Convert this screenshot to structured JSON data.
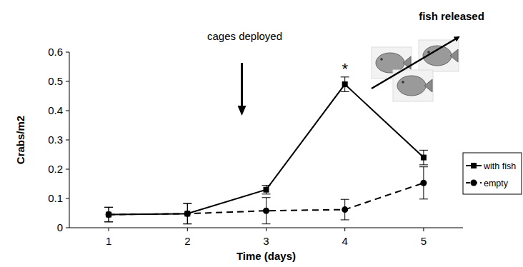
{
  "chart_data": {
    "type": "line",
    "x_label": "Time (days)",
    "y_label": "Crabs/m2",
    "x": [
      1,
      2,
      3,
      4,
      5
    ],
    "xlim": [
      0.5,
      5.5
    ],
    "xticks": [
      1,
      2,
      3,
      4,
      5
    ],
    "ylim": [
      0,
      0.6
    ],
    "yticks": [
      0,
      0.1,
      0.2,
      0.3,
      0.4,
      0.5,
      0.6
    ],
    "grid": false,
    "legend": "right",
    "series": [
      {
        "name": "with fish",
        "color": "#000000",
        "marker": "square",
        "line_style": "solid",
        "values": [
          0.045,
          0.048,
          0.13,
          0.49,
          0.24
        ],
        "errors": [
          0.025,
          0.035,
          0.015,
          0.025,
          0.025
        ]
      },
      {
        "name": "empty",
        "color": "#000000",
        "marker": "circle",
        "line_style": "dashed",
        "values": [
          0.045,
          0.048,
          0.058,
          0.062,
          0.153
        ],
        "errors": [
          0.025,
          0.035,
          0.045,
          0.035,
          0.055
        ]
      }
    ],
    "annotations": [
      {
        "text": "cages deployed",
        "x": 3
      },
      {
        "text": "*",
        "x": 4
      },
      {
        "text": "fish released"
      }
    ]
  }
}
